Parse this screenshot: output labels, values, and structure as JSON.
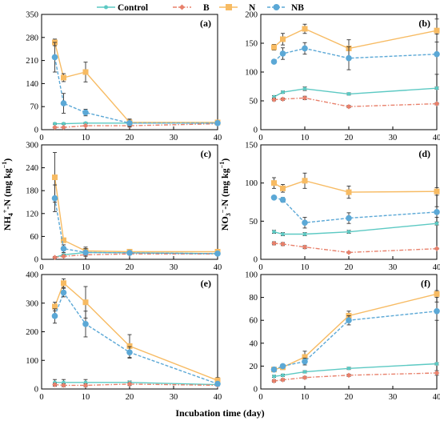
{
  "legend": [
    {
      "key": "control",
      "label": "Control"
    },
    {
      "key": "b",
      "label": "B"
    },
    {
      "key": "n",
      "label": "N"
    },
    {
      "key": "nb",
      "label": "NB"
    }
  ],
  "colors": {
    "control": "#5cc9c3",
    "b": "#e8806b",
    "n": "#f7bb63",
    "nb": "#5ba8d6"
  },
  "xlabel": "Incubation time (day)",
  "ylabel_left": "NH4+-N (mg kg−1)",
  "ylabel_right": "NO3−-N (mg kg−1)",
  "ylabel_left_parts": {
    "a": "NH",
    "b": "4",
    "c": "+",
    "d": "-N (mg kg",
    "e": "−1",
    "f": ")"
  },
  "ylabel_right_parts": {
    "a": "NO",
    "b": "3",
    "c": "−",
    "d": "-N (mg kg",
    "e": "−1",
    "f": ")"
  },
  "chart_data": [
    {
      "type": "line",
      "panel": "(a)",
      "x": [
        3,
        5,
        10,
        20,
        40
      ],
      "xlim": [
        0,
        40
      ],
      "ylim": [
        0,
        350
      ],
      "xticks": [
        0,
        10,
        20,
        30,
        40
      ],
      "yticks": [
        0,
        70,
        140,
        210,
        280,
        350
      ],
      "series": [
        {
          "name": "Control",
          "key": "control",
          "values": [
            18,
            18,
            20,
            20,
            20
          ],
          "err": [
            2,
            2,
            2,
            2,
            2
          ]
        },
        {
          "name": "B",
          "key": "b",
          "values": [
            7,
            7,
            12,
            12,
            18
          ],
          "err": [
            2,
            2,
            2,
            2,
            2
          ]
        },
        {
          "name": "N",
          "key": "n",
          "values": [
            265,
            158,
            175,
            22,
            22
          ],
          "err": [
            10,
            12,
            30,
            10,
            3
          ]
        },
        {
          "name": "NB",
          "key": "nb",
          "values": [
            220,
            80,
            52,
            20,
            20
          ],
          "err": [
            45,
            30,
            10,
            12,
            3
          ]
        }
      ]
    },
    {
      "type": "line",
      "panel": "(b)",
      "x": [
        3,
        5,
        10,
        20,
        40
      ],
      "xlim": [
        0,
        40
      ],
      "ylim": [
        0,
        200
      ],
      "xticks": [
        0,
        10,
        20,
        30,
        40
      ],
      "yticks": [
        0,
        50,
        100,
        150,
        200
      ],
      "series": [
        {
          "name": "Control",
          "key": "control",
          "values": [
            57,
            65,
            71,
            62,
            72
          ],
          "err": [
            2,
            2,
            3,
            2,
            2
          ]
        },
        {
          "name": "B",
          "key": "b",
          "values": [
            52,
            53,
            55,
            40,
            45
          ],
          "err": [
            2,
            2,
            3,
            2,
            2
          ]
        },
        {
          "name": "N",
          "key": "n",
          "values": [
            143,
            157,
            175,
            141,
            172
          ],
          "err": [
            5,
            10,
            8,
            15,
            20
          ]
        },
        {
          "name": "NB",
          "key": "nb",
          "values": [
            118,
            132,
            141,
            124,
            131
          ],
          "err": [
            3,
            10,
            10,
            20,
            35
          ]
        }
      ]
    },
    {
      "type": "line",
      "panel": "(c)",
      "x": [
        3,
        5,
        10,
        20,
        40
      ],
      "xlim": [
        0,
        40
      ],
      "ylim": [
        0,
        300
      ],
      "xticks": [
        0,
        10,
        20,
        30,
        40
      ],
      "yticks": [
        0,
        60,
        120,
        180,
        240,
        300
      ],
      "series": [
        {
          "name": "Control",
          "key": "control",
          "values": [
            5,
            12,
            18,
            17,
            15
          ],
          "err": [
            2,
            2,
            5,
            3,
            3
          ]
        },
        {
          "name": "B",
          "key": "b",
          "values": [
            5,
            8,
            12,
            14,
            14
          ],
          "err": [
            2,
            2,
            2,
            2,
            2
          ]
        },
        {
          "name": "N",
          "key": "n",
          "values": [
            215,
            50,
            22,
            20,
            20
          ],
          "err": [
            65,
            5,
            10,
            5,
            5
          ]
        },
        {
          "name": "NB",
          "key": "nb",
          "values": [
            160,
            28,
            18,
            17,
            15
          ],
          "err": [
            35,
            10,
            10,
            5,
            5
          ]
        }
      ]
    },
    {
      "type": "line",
      "panel": "(d)",
      "x": [
        3,
        5,
        10,
        20,
        40
      ],
      "xlim": [
        0,
        40
      ],
      "ylim": [
        0,
        150
      ],
      "xticks": [
        0,
        10,
        20,
        30,
        40
      ],
      "yticks": [
        0,
        50,
        100,
        150
      ],
      "series": [
        {
          "name": "Control",
          "key": "control",
          "values": [
            36,
            33,
            33,
            36,
            47
          ],
          "err": [
            2,
            2,
            2,
            2,
            2
          ]
        },
        {
          "name": "B",
          "key": "b",
          "values": [
            21,
            20,
            16,
            9,
            14
          ],
          "err": [
            2,
            2,
            2,
            1,
            1
          ]
        },
        {
          "name": "N",
          "key": "n",
          "values": [
            100,
            93,
            103,
            88,
            89
          ],
          "err": [
            7,
            5,
            10,
            8,
            5
          ]
        },
        {
          "name": "NB",
          "key": "nb",
          "values": [
            81,
            78,
            48,
            54,
            62
          ],
          "err": [
            2,
            3,
            7,
            7,
            7
          ]
        }
      ]
    },
    {
      "type": "line",
      "panel": "(e)",
      "x": [
        3,
        5,
        10,
        20,
        40
      ],
      "xlim": [
        0,
        40
      ],
      "ylim": [
        0,
        400
      ],
      "xticks": [
        0,
        10,
        20,
        30,
        40
      ],
      "yticks": [
        0,
        100,
        200,
        300,
        400
      ],
      "series": [
        {
          "name": "Control",
          "key": "control",
          "values": [
            23,
            23,
            23,
            23,
            15
          ],
          "err": [
            10,
            10,
            10,
            5,
            3
          ]
        },
        {
          "name": "B",
          "key": "b",
          "values": [
            15,
            13,
            13,
            17,
            13
          ],
          "err": [
            5,
            5,
            5,
            5,
            3
          ]
        },
        {
          "name": "N",
          "key": "n",
          "values": [
            288,
            370,
            303,
            150,
            30
          ],
          "err": [
            15,
            15,
            55,
            40,
            10
          ]
        },
        {
          "name": "NB",
          "key": "nb",
          "values": [
            255,
            337,
            227,
            128,
            18
          ],
          "err": [
            25,
            15,
            45,
            20,
            5
          ]
        }
      ]
    },
    {
      "type": "line",
      "panel": "(f)",
      "x": [
        3,
        5,
        10,
        20,
        40
      ],
      "xlim": [
        0,
        40
      ],
      "ylim": [
        0,
        100
      ],
      "xticks": [
        0,
        10,
        20,
        30,
        40
      ],
      "yticks": [
        0,
        20,
        40,
        60,
        80,
        100
      ],
      "series": [
        {
          "name": "Control",
          "key": "control",
          "values": [
            11,
            12,
            15,
            18,
            22
          ],
          "err": [
            1,
            1,
            1,
            1,
            1
          ]
        },
        {
          "name": "B",
          "key": "b",
          "values": [
            7,
            8,
            10,
            12,
            14
          ],
          "err": [
            1,
            1,
            1,
            1,
            2
          ]
        },
        {
          "name": "N",
          "key": "n",
          "values": [
            17,
            19,
            28,
            64,
            83
          ],
          "err": [
            2,
            2,
            5,
            4,
            3
          ]
        },
        {
          "name": "NB",
          "key": "nb",
          "values": [
            17,
            20,
            24,
            60,
            68
          ],
          "err": [
            1,
            1,
            3,
            4,
            8
          ]
        }
      ]
    }
  ]
}
